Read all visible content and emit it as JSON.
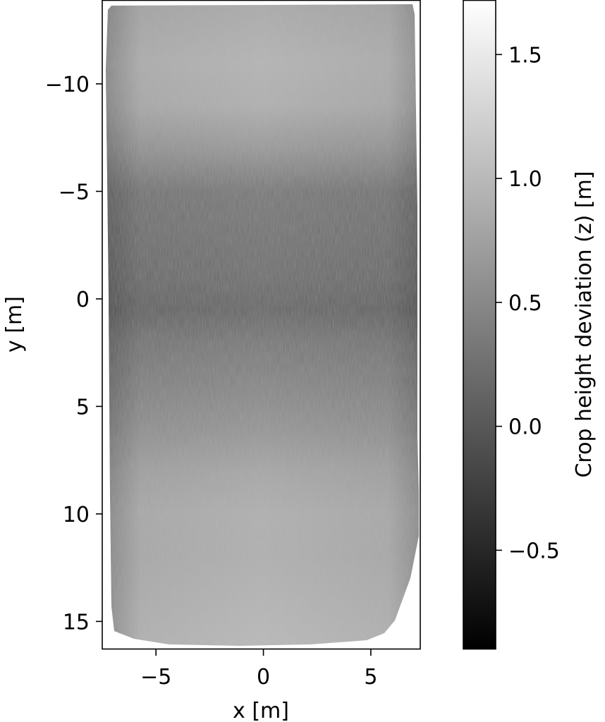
{
  "chart_data": {
    "type": "heatmap",
    "title": "",
    "xlabel": "x [m]",
    "ylabel": "y [m]",
    "xlim": [
      -7.5,
      7.3
    ],
    "ylim": [
      -13.9,
      16.3
    ],
    "y_inverted": true,
    "x_ticks": [
      -5,
      0,
      5
    ],
    "x_tick_labels": [
      "−5",
      "0",
      "5"
    ],
    "y_ticks": [
      -10,
      -5,
      0,
      5,
      10,
      15
    ],
    "y_tick_labels": [
      "−10",
      "−5",
      "0",
      "5",
      "10",
      "15"
    ],
    "colormap": "gray",
    "colorbar": {
      "label": "Crop height deviation (z) [m]",
      "range": [
        -0.9,
        1.72
      ],
      "ticks": [
        -0.5,
        0.0,
        0.5,
        1.0,
        1.5
      ],
      "tick_labels": [
        "−0.5",
        "0.0",
        "0.5",
        "1.0",
        "1.5"
      ]
    },
    "grid": false,
    "surface_bands_y": [
      -13.5,
      -11,
      -9,
      -7,
      -5,
      -3,
      -1,
      0.5,
      2,
      4,
      6,
      8,
      10,
      12,
      14,
      16
    ],
    "surface_bands_z": [
      0.85,
      0.95,
      0.9,
      0.65,
      0.3,
      0.25,
      0.2,
      0.12,
      0.3,
      0.45,
      0.6,
      0.8,
      0.9,
      0.9,
      0.95,
      1.0
    ]
  }
}
